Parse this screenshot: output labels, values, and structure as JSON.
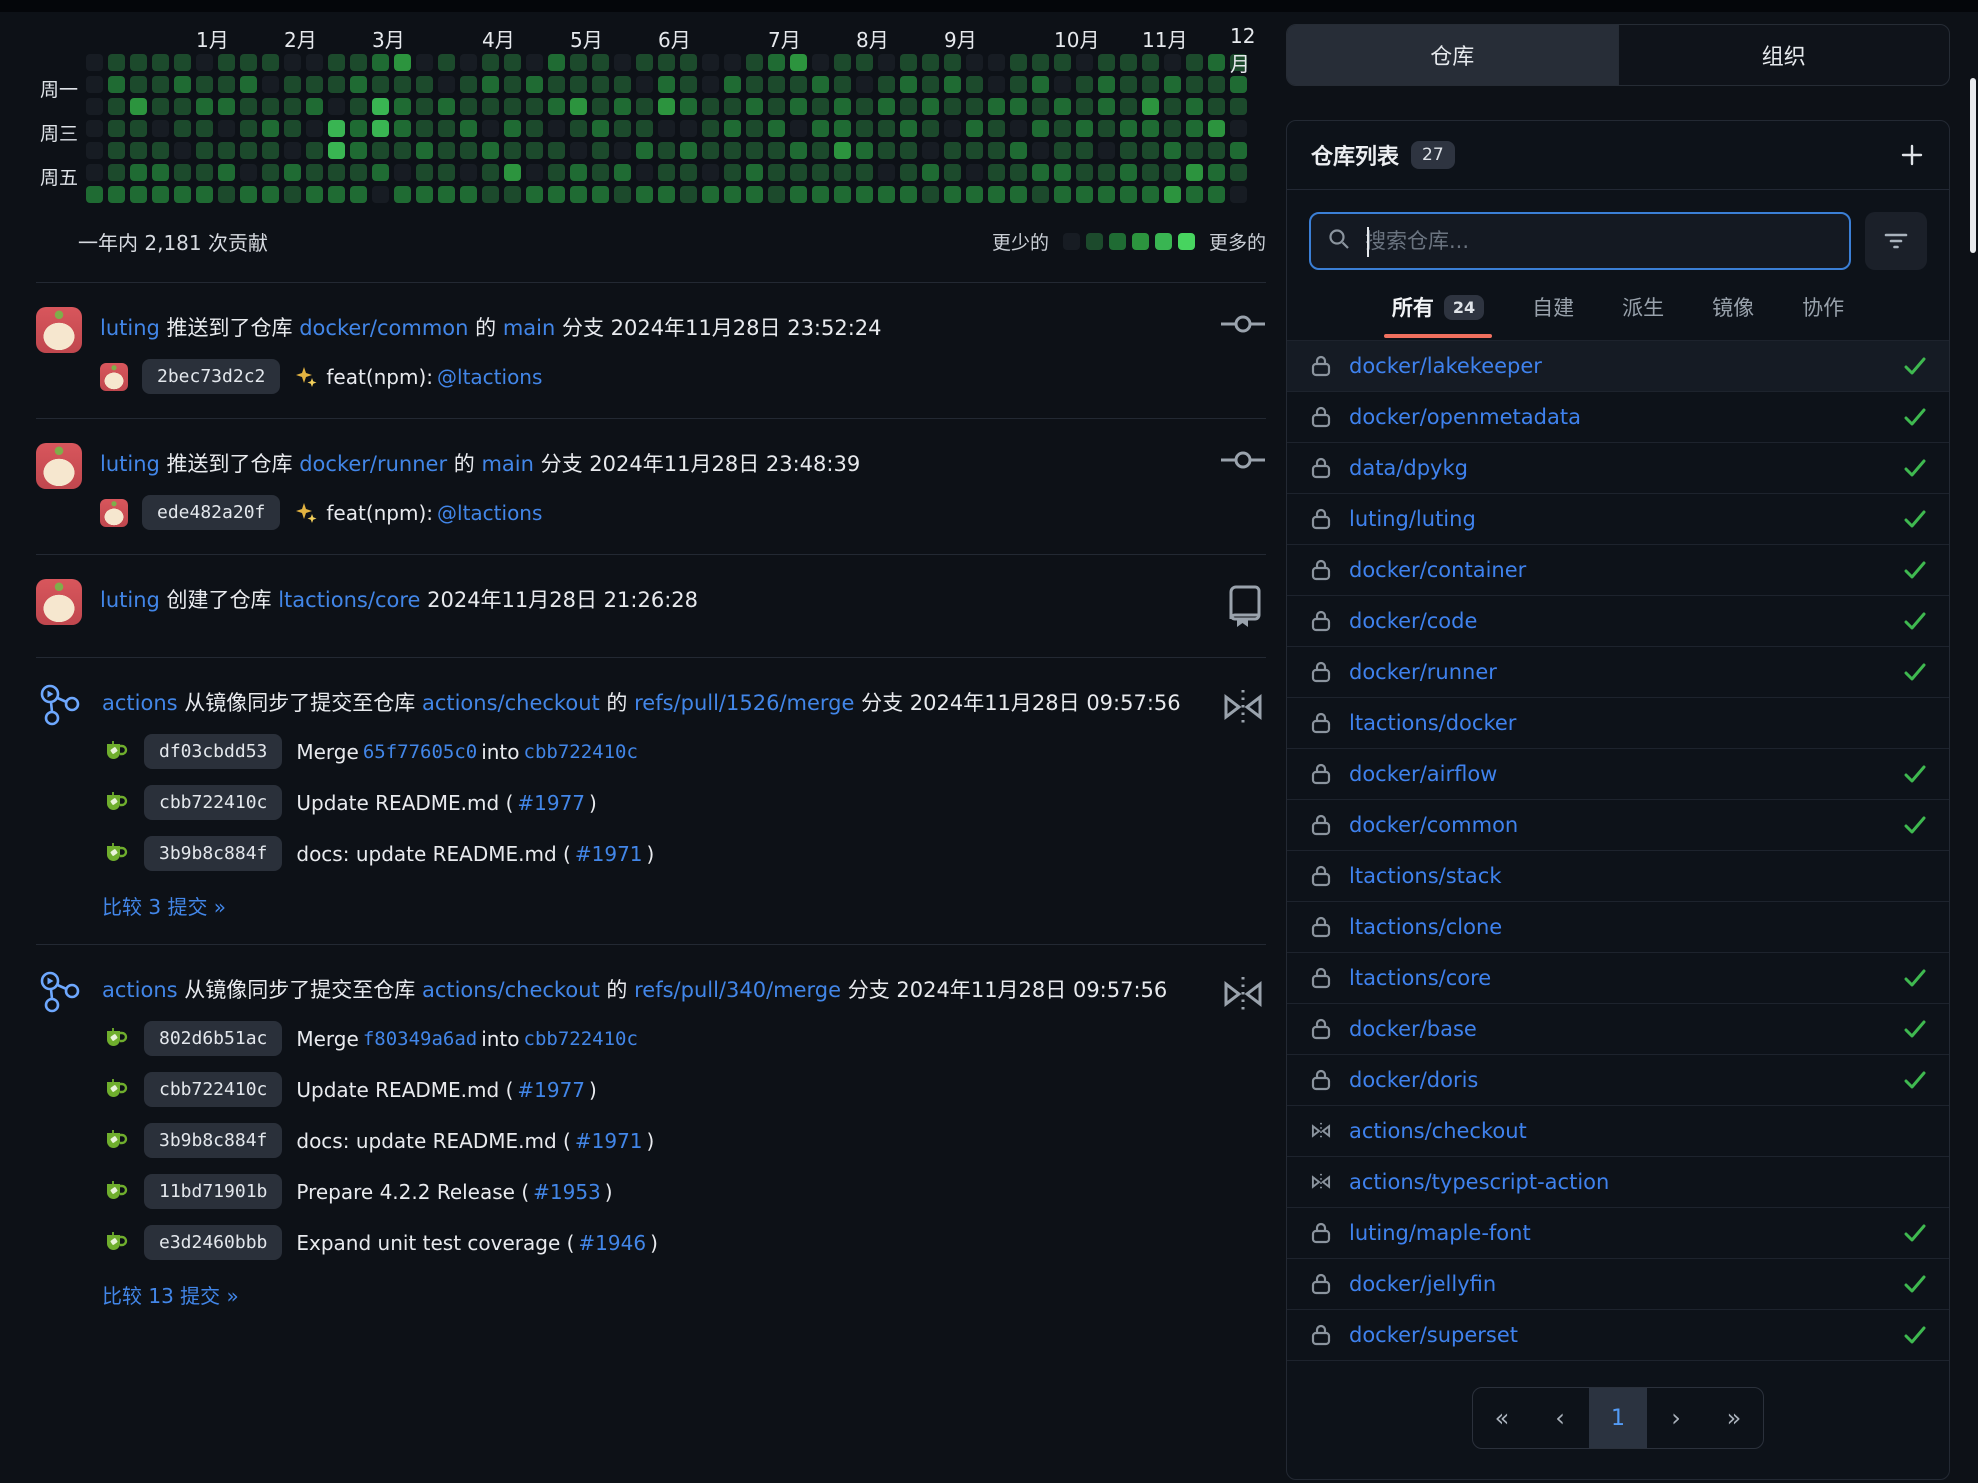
{
  "colors": {
    "link": "#4286e8",
    "check": "#3fb950",
    "accent_underline": "#f0705f",
    "heatmap_levels": [
      "#171c23",
      "#1c4a2c",
      "#1f6b33",
      "#2c943e",
      "#39b552",
      "#47d45f"
    ]
  },
  "heatmap": {
    "months": [
      "1月",
      "2月",
      "3月",
      "4月",
      "5月",
      "6月",
      "7月",
      "8月",
      "9月",
      "10月",
      "11月",
      "12月"
    ],
    "month_cols": [
      5,
      9,
      13,
      18,
      22,
      26,
      31,
      35,
      39,
      44,
      48,
      52
    ],
    "day_labels": [
      {
        "text": "周一",
        "row": 1
      },
      {
        "text": "周三",
        "row": 3
      },
      {
        "text": "周五",
        "row": 5
      }
    ],
    "columns": [
      "0000002",
      "1211112",
      "1131122",
      "1110122",
      "1211012",
      "0121112",
      "1120121",
      "1211102",
      "1012112",
      "0111021",
      "0120112",
      "1104412",
      "1212212",
      "2144120",
      "3122102",
      "0111212",
      "1021112",
      "0112102",
      "1210211",
      "1112131",
      "0211102",
      "2120112",
      "1131022",
      "1112112",
      "0121021",
      "1011202",
      "1230112",
      "1120211",
      "0011102",
      "0212112",
      "1121122",
      "2112111",
      "3120212",
      "0212112",
      "1122312",
      "1011212",
      "0121102",
      "1212112",
      "1121021",
      "1210112",
      "0112102",
      "0021112",
      "1120212",
      "1212021",
      "1021122",
      "0112112",
      "1221012",
      "1112122",
      "1132112",
      "0211213",
      "1122132",
      "2113122",
      "1210210"
    ],
    "total_label": "一年内 2,181 次贡献",
    "legend_less": "更少的",
    "legend_more": "更多的"
  },
  "feed": [
    {
      "avatar": "user",
      "icon": "commit",
      "title": [
        {
          "t": "luting",
          "link": true
        },
        {
          "t": " 推送到了仓库 "
        },
        {
          "t": "docker/common",
          "link": true
        },
        {
          "t": " 的 "
        },
        {
          "t": "main",
          "link": true
        },
        {
          "t": " 分支 2024年11月28日 23:52:24"
        }
      ],
      "commits": [
        {
          "hash": "2bec73d2c2",
          "avatar": "user",
          "msg": [
            {
              "icon": "sparkles"
            },
            {
              "t": " feat(npm): "
            },
            {
              "t": "@ltactions",
              "link": true
            }
          ]
        }
      ]
    },
    {
      "avatar": "user",
      "icon": "commit",
      "title": [
        {
          "t": "luting",
          "link": true
        },
        {
          "t": " 推送到了仓库 "
        },
        {
          "t": "docker/runner",
          "link": true
        },
        {
          "t": " 的 "
        },
        {
          "t": "main",
          "link": true
        },
        {
          "t": " 分支 2024年11月28日 23:48:39"
        }
      ],
      "commits": [
        {
          "hash": "ede482a20f",
          "avatar": "user",
          "msg": [
            {
              "icon": "sparkles"
            },
            {
              "t": " feat(npm): "
            },
            {
              "t": "@ltactions",
              "link": true
            }
          ]
        }
      ]
    },
    {
      "avatar": "user",
      "icon": "repo",
      "title": [
        {
          "t": "luting",
          "link": true
        },
        {
          "t": " 创建了仓库 "
        },
        {
          "t": "ltactions/core",
          "link": true
        },
        {
          "t": " 2024年11月28日 21:26:28"
        }
      ],
      "commits": []
    },
    {
      "avatar": "actions",
      "icon": "mirror",
      "title": [
        {
          "t": "actions",
          "link": true
        },
        {
          "t": " 从镜像同步了提交至仓库 "
        },
        {
          "t": "actions/checkout",
          "link": true
        },
        {
          "t": " 的 "
        },
        {
          "t": "refs/pull/1526/merge",
          "link": true
        },
        {
          "t": " 分支 2024年11月28日 09:57:56"
        }
      ],
      "commits": [
        {
          "hash": "df03cbdd53",
          "avatar": "gitea",
          "msg": [
            {
              "t": "Merge "
            },
            {
              "t": "65f77605c0",
              "link": true,
              "mono": true
            },
            {
              "t": " into "
            },
            {
              "t": "cbb722410c",
              "link": true,
              "mono": true
            }
          ]
        },
        {
          "hash": "cbb722410c",
          "avatar": "gitea",
          "msg": [
            {
              "t": "Update README.md ("
            },
            {
              "t": "#1977",
              "link": true
            },
            {
              "t": ")"
            }
          ]
        },
        {
          "hash": "3b9b8c884f",
          "avatar": "gitea",
          "msg": [
            {
              "t": "docs: update README.md ("
            },
            {
              "t": "#1971",
              "link": true
            },
            {
              "t": ")"
            }
          ]
        }
      ],
      "compare": "比较 3 提交 »"
    },
    {
      "avatar": "actions",
      "icon": "mirror",
      "title": [
        {
          "t": "actions",
          "link": true
        },
        {
          "t": " 从镜像同步了提交至仓库 "
        },
        {
          "t": "actions/checkout",
          "link": true
        },
        {
          "t": " 的 "
        },
        {
          "t": "refs/pull/340/merge",
          "link": true
        },
        {
          "t": " 分支 2024年11月28日 09:57:56"
        }
      ],
      "commits": [
        {
          "hash": "802d6b51ac",
          "avatar": "gitea",
          "msg": [
            {
              "t": "Merge "
            },
            {
              "t": "f80349a6ad",
              "link": true,
              "mono": true
            },
            {
              "t": " into "
            },
            {
              "t": "cbb722410c",
              "link": true,
              "mono": true
            }
          ]
        },
        {
          "hash": "cbb722410c",
          "avatar": "gitea",
          "msg": [
            {
              "t": "Update README.md ("
            },
            {
              "t": "#1977",
              "link": true
            },
            {
              "t": ")"
            }
          ]
        },
        {
          "hash": "3b9b8c884f",
          "avatar": "gitea",
          "msg": [
            {
              "t": "docs: update README.md ("
            },
            {
              "t": "#1971",
              "link": true
            },
            {
              "t": ")"
            }
          ]
        },
        {
          "hash": "11bd71901b",
          "avatar": "gitea",
          "msg": [
            {
              "t": "Prepare 4.2.2 Release ("
            },
            {
              "t": "#1953",
              "link": true
            },
            {
              "t": ")"
            }
          ]
        },
        {
          "hash": "e3d2460bbb",
          "avatar": "gitea",
          "msg": [
            {
              "t": "Expand unit test coverage ("
            },
            {
              "t": "#1946",
              "link": true
            },
            {
              "t": ")"
            }
          ]
        }
      ],
      "compare": "比较 13 提交 »"
    }
  ],
  "sidebar": {
    "top_tabs": [
      {
        "label": "仓库",
        "active": true
      },
      {
        "label": "组织",
        "active": false
      }
    ],
    "panel_title": "仓库列表",
    "panel_count": "27",
    "search": {
      "placeholder": "搜索仓库..."
    },
    "filters": [
      {
        "label": "所有",
        "count": "24",
        "active": true
      },
      {
        "label": "自建",
        "active": false
      },
      {
        "label": "派生",
        "active": false
      },
      {
        "label": "镜像",
        "active": false
      },
      {
        "label": "协作",
        "active": false
      }
    ],
    "repos": [
      {
        "name": "docker/lakekeeper",
        "icon": "lock",
        "check": true,
        "hl": true
      },
      {
        "name": "docker/openmetadata",
        "icon": "lock",
        "check": true
      },
      {
        "name": "data/dpykg",
        "icon": "lock",
        "check": true
      },
      {
        "name": "luting/luting",
        "icon": "lock",
        "check": true
      },
      {
        "name": "docker/container",
        "icon": "lock",
        "check": true
      },
      {
        "name": "docker/code",
        "icon": "lock",
        "check": true
      },
      {
        "name": "docker/runner",
        "icon": "lock",
        "check": true
      },
      {
        "name": "ltactions/docker",
        "icon": "lock",
        "check": false
      },
      {
        "name": "docker/airflow",
        "icon": "lock",
        "check": true
      },
      {
        "name": "docker/common",
        "icon": "lock",
        "check": true
      },
      {
        "name": "ltactions/stack",
        "icon": "lock",
        "check": false
      },
      {
        "name": "ltactions/clone",
        "icon": "lock",
        "check": false
      },
      {
        "name": "ltactions/core",
        "icon": "lock",
        "check": true
      },
      {
        "name": "docker/base",
        "icon": "lock",
        "check": true
      },
      {
        "name": "docker/doris",
        "icon": "lock",
        "check": true
      },
      {
        "name": "actions/checkout",
        "icon": "mirror",
        "check": false
      },
      {
        "name": "actions/typescript-action",
        "icon": "mirror",
        "check": false
      },
      {
        "name": "luting/maple-font",
        "icon": "lock",
        "check": true
      },
      {
        "name": "docker/jellyfin",
        "icon": "lock",
        "check": true
      },
      {
        "name": "docker/superset",
        "icon": "lock",
        "check": true
      }
    ],
    "pagination": [
      "«",
      "‹",
      "1",
      "›",
      "»"
    ],
    "pagination_current": 2
  }
}
